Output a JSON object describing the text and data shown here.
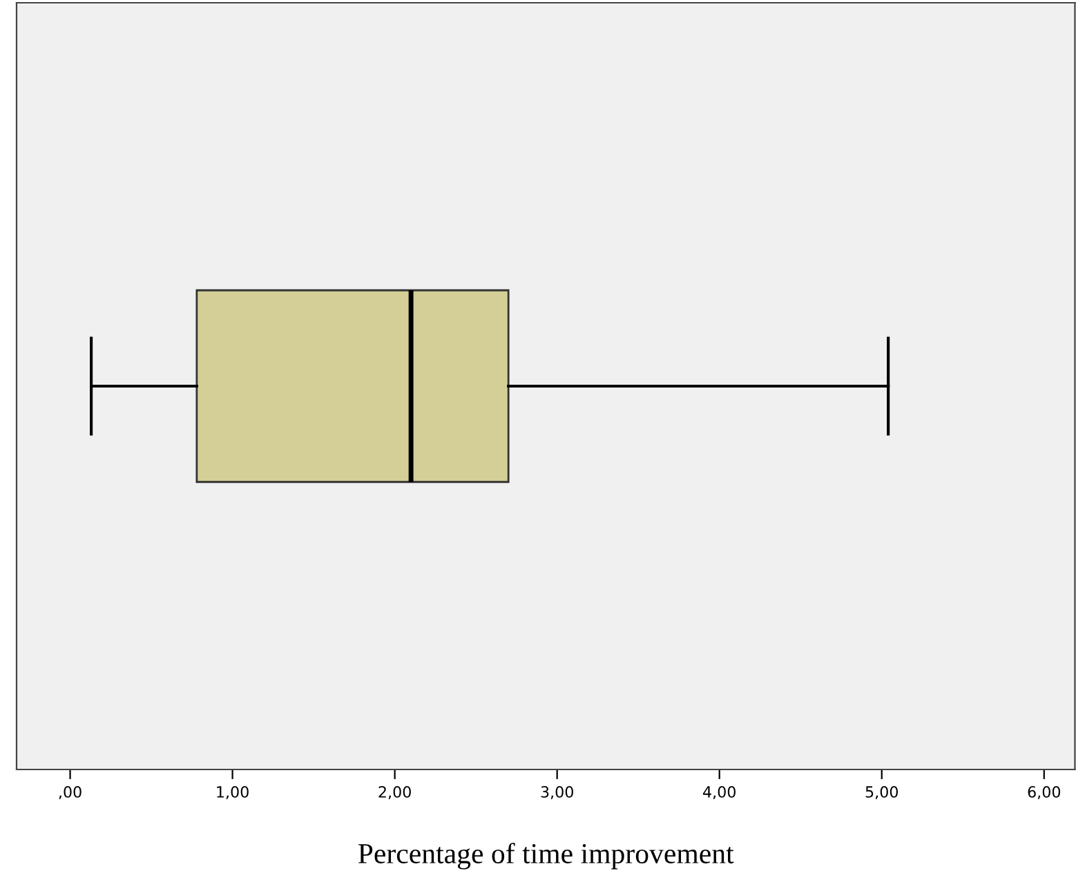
{
  "chart_data": {
    "type": "box",
    "orientation": "horizontal",
    "xlabel": "Percentage of time improvement",
    "categories": [
      null
    ],
    "boxes": [
      {
        "low": 0.13,
        "q1": 0.78,
        "median": 2.1,
        "q3": 2.7,
        "high": 5.04
      }
    ],
    "color": "#d3cf97",
    "xlim": [
      -0.33,
      6.19
    ],
    "xticks": [
      {
        "value": 0,
        "label": ",00"
      },
      {
        "value": 1,
        "label": "1,00"
      },
      {
        "value": 2,
        "label": "2,00"
      },
      {
        "value": 3,
        "label": "3,00"
      },
      {
        "value": 4,
        "label": "4,00"
      },
      {
        "value": 5,
        "label": "5,00"
      },
      {
        "value": 6,
        "label": "6,00"
      }
    ],
    "grid": false
  }
}
